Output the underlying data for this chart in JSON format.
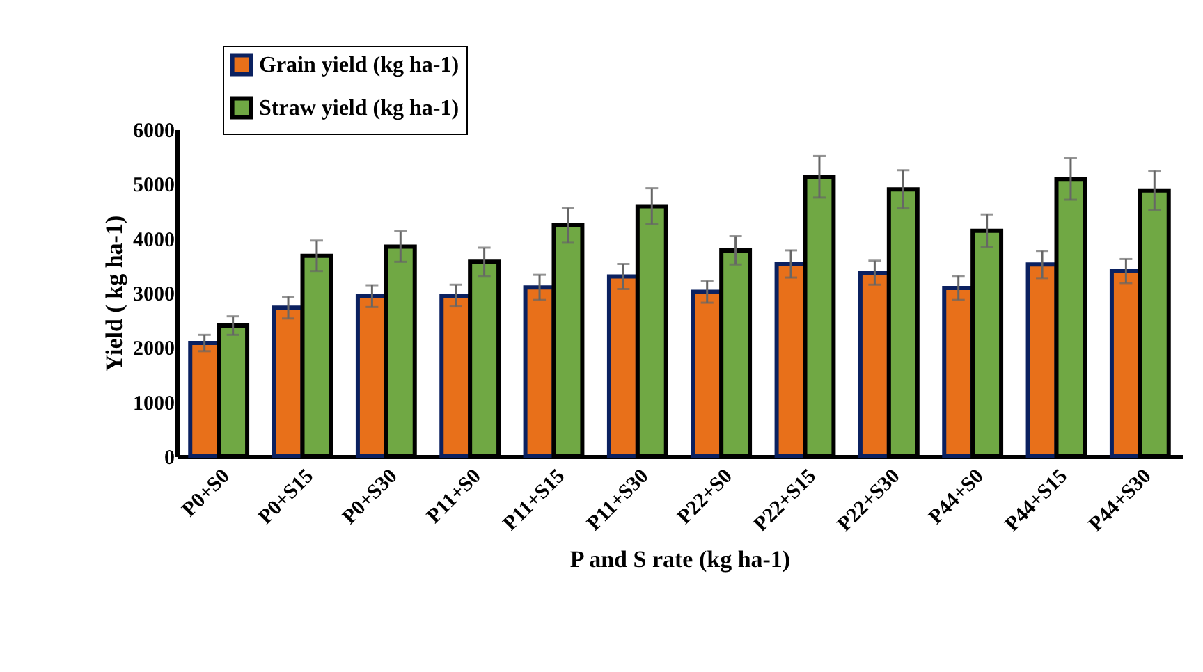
{
  "chart_data": {
    "type": "bar",
    "xlabel": "P and S rate (kg ha-1)",
    "ylabel": "Yield ( kg ha-1)",
    "categories": [
      "P0+S0",
      "P0+S15",
      "P0+S30",
      "P11+S0",
      "P11+S15",
      "P11+S30",
      "P22+S0",
      "P22+S15",
      "P22+S30",
      "P44+S0",
      "P44+S15",
      "P44+S30"
    ],
    "series": [
      {
        "name": "Grain yield (kg ha-1)",
        "color": "#e8701a",
        "values": [
          2080,
          2730,
          2940,
          2950,
          3100,
          3300,
          3020,
          3530,
          3370,
          3090,
          3520,
          3400
        ],
        "errors": [
          150,
          200,
          200,
          200,
          230,
          230,
          200,
          250,
          220,
          220,
          250,
          220
        ]
      },
      {
        "name": "Straw yield (kg ha-1)",
        "color": "#70a844",
        "values": [
          2400,
          3680,
          3850,
          3570,
          4240,
          4590,
          3780,
          5130,
          4900,
          4140,
          5090,
          4880
        ],
        "errors": [
          170,
          280,
          280,
          260,
          320,
          330,
          260,
          380,
          350,
          300,
          380,
          360
        ]
      }
    ],
    "ylim": [
      0,
      6000
    ],
    "yticks": [
      0,
      1000,
      2000,
      3000,
      4000,
      5000,
      6000
    ],
    "grid": false,
    "legend": "top left"
  }
}
